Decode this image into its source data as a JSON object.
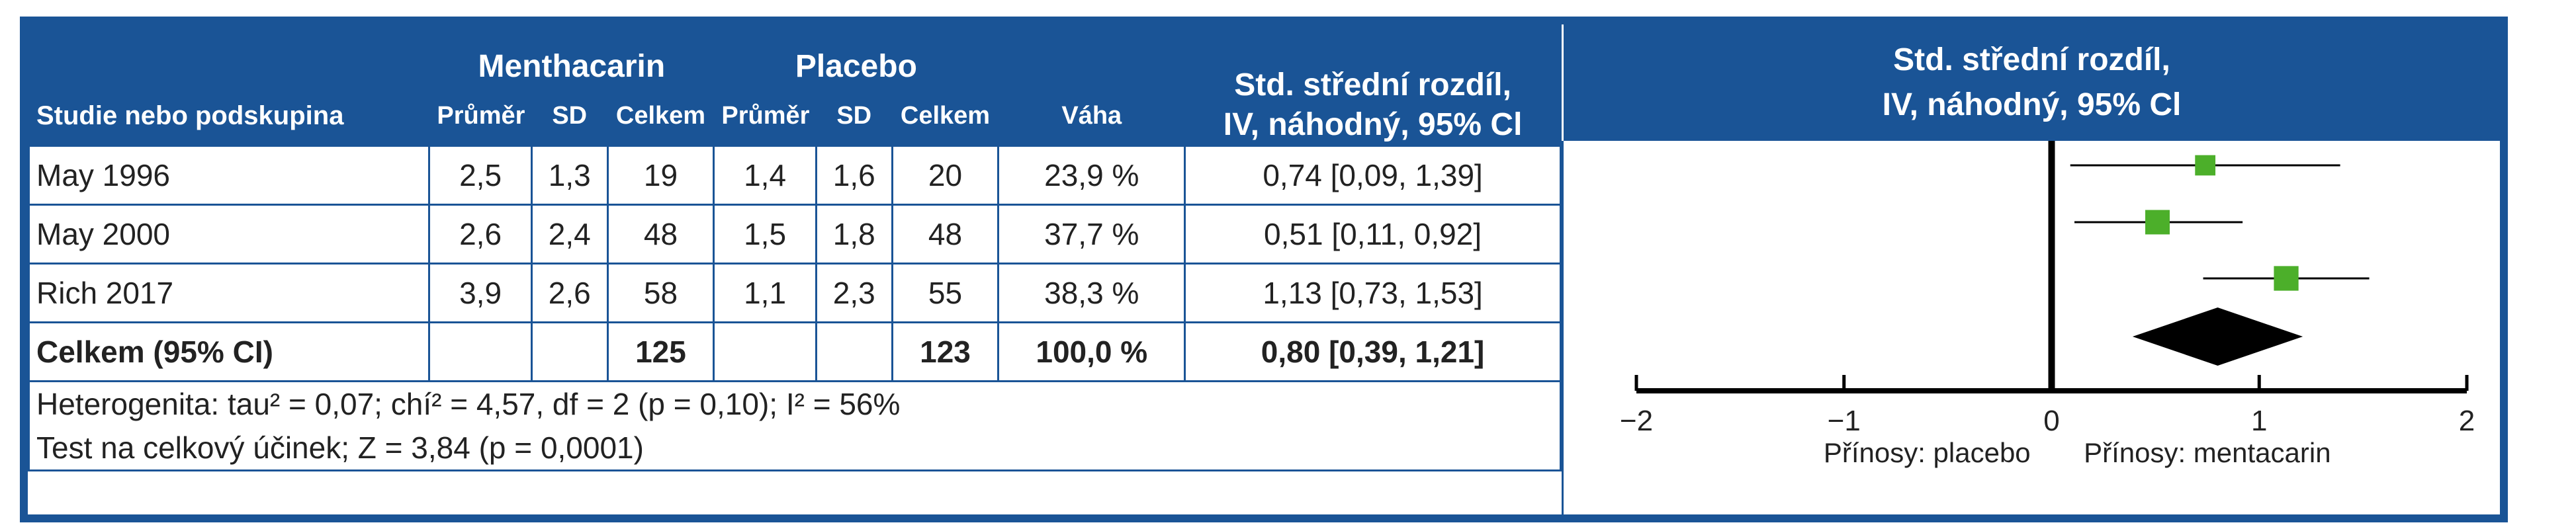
{
  "header": {
    "group_menthacarin": "Menthacarin",
    "group_placebo": "Placebo",
    "effect_title_line1": "Std. střední rozdíl,",
    "effect_title_line2": "IV, náhodný, 95% Cl",
    "col_study": "Studie nebo podskupina",
    "col_mean": "Průměr",
    "col_sd": "SD",
    "col_total": "Celkem",
    "col_weight": "Váha",
    "forest_title_line1": "Std. střední rozdíl,",
    "forest_title_line2": "IV, náhodný, 95% Cl"
  },
  "studies": [
    {
      "name": "May 1996",
      "m_mean": "2,5",
      "m_sd": "1,3",
      "m_total": "19",
      "p_mean": "1,4",
      "p_sd": "1,6",
      "p_total": "20",
      "weight": "23,9 %",
      "effect": "0,74 [0,09, 1,39]"
    },
    {
      "name": "May 2000",
      "m_mean": "2,6",
      "m_sd": "2,4",
      "m_total": "48",
      "p_mean": "1,5",
      "p_sd": "1,8",
      "p_total": "48",
      "weight": "37,7 %",
      "effect": "0,51 [0,11, 0,92]"
    },
    {
      "name": "Rich 2017",
      "m_mean": "3,9",
      "m_sd": "2,6",
      "m_total": "58",
      "p_mean": "1,1",
      "p_sd": "2,3",
      "p_total": "55",
      "weight": "38,3 %",
      "effect": "1,13 [0,73, 1,53]"
    }
  ],
  "total": {
    "name": "Celkem (95% CI)",
    "m_total": "125",
    "p_total": "123",
    "weight": "100,0 %",
    "effect": "0,80 [0,39, 1,21]"
  },
  "notes": {
    "heterogeneity": "Heterogenita: tau² = 0,07; chí² = 4,57, df = 2 (p = 0,10); I² = 56%",
    "overall_test": "Test na celkový účinek; Z = 3,84 (p = 0,0001)"
  },
  "colors": {
    "header": "#1a5496",
    "marker": "#4caf2a",
    "diamond": "#000000"
  },
  "chart_data": {
    "type": "forest",
    "studies": [
      {
        "name": "May 1996",
        "estimate": 0.74,
        "ci": [
          0.09,
          1.39
        ],
        "weight": 23.9
      },
      {
        "name": "May 2000",
        "estimate": 0.51,
        "ci": [
          0.11,
          0.92
        ],
        "weight": 37.7
      },
      {
        "name": "Rich 2017",
        "estimate": 1.13,
        "ci": [
          0.73,
          1.53
        ],
        "weight": 38.3
      }
    ],
    "pooled": {
      "name": "Celkem (95% CI)",
      "estimate": 0.8,
      "ci": [
        0.39,
        1.21
      ]
    },
    "xlim": [
      -2,
      2
    ],
    "ticks": [
      -2,
      -1,
      0,
      1,
      2
    ],
    "tick_labels": [
      "−2",
      "−1",
      "0",
      "1",
      "2"
    ],
    "xlabel_left": "Přínosy: placebo",
    "xlabel_right": "Přínosy: mentacarin"
  }
}
